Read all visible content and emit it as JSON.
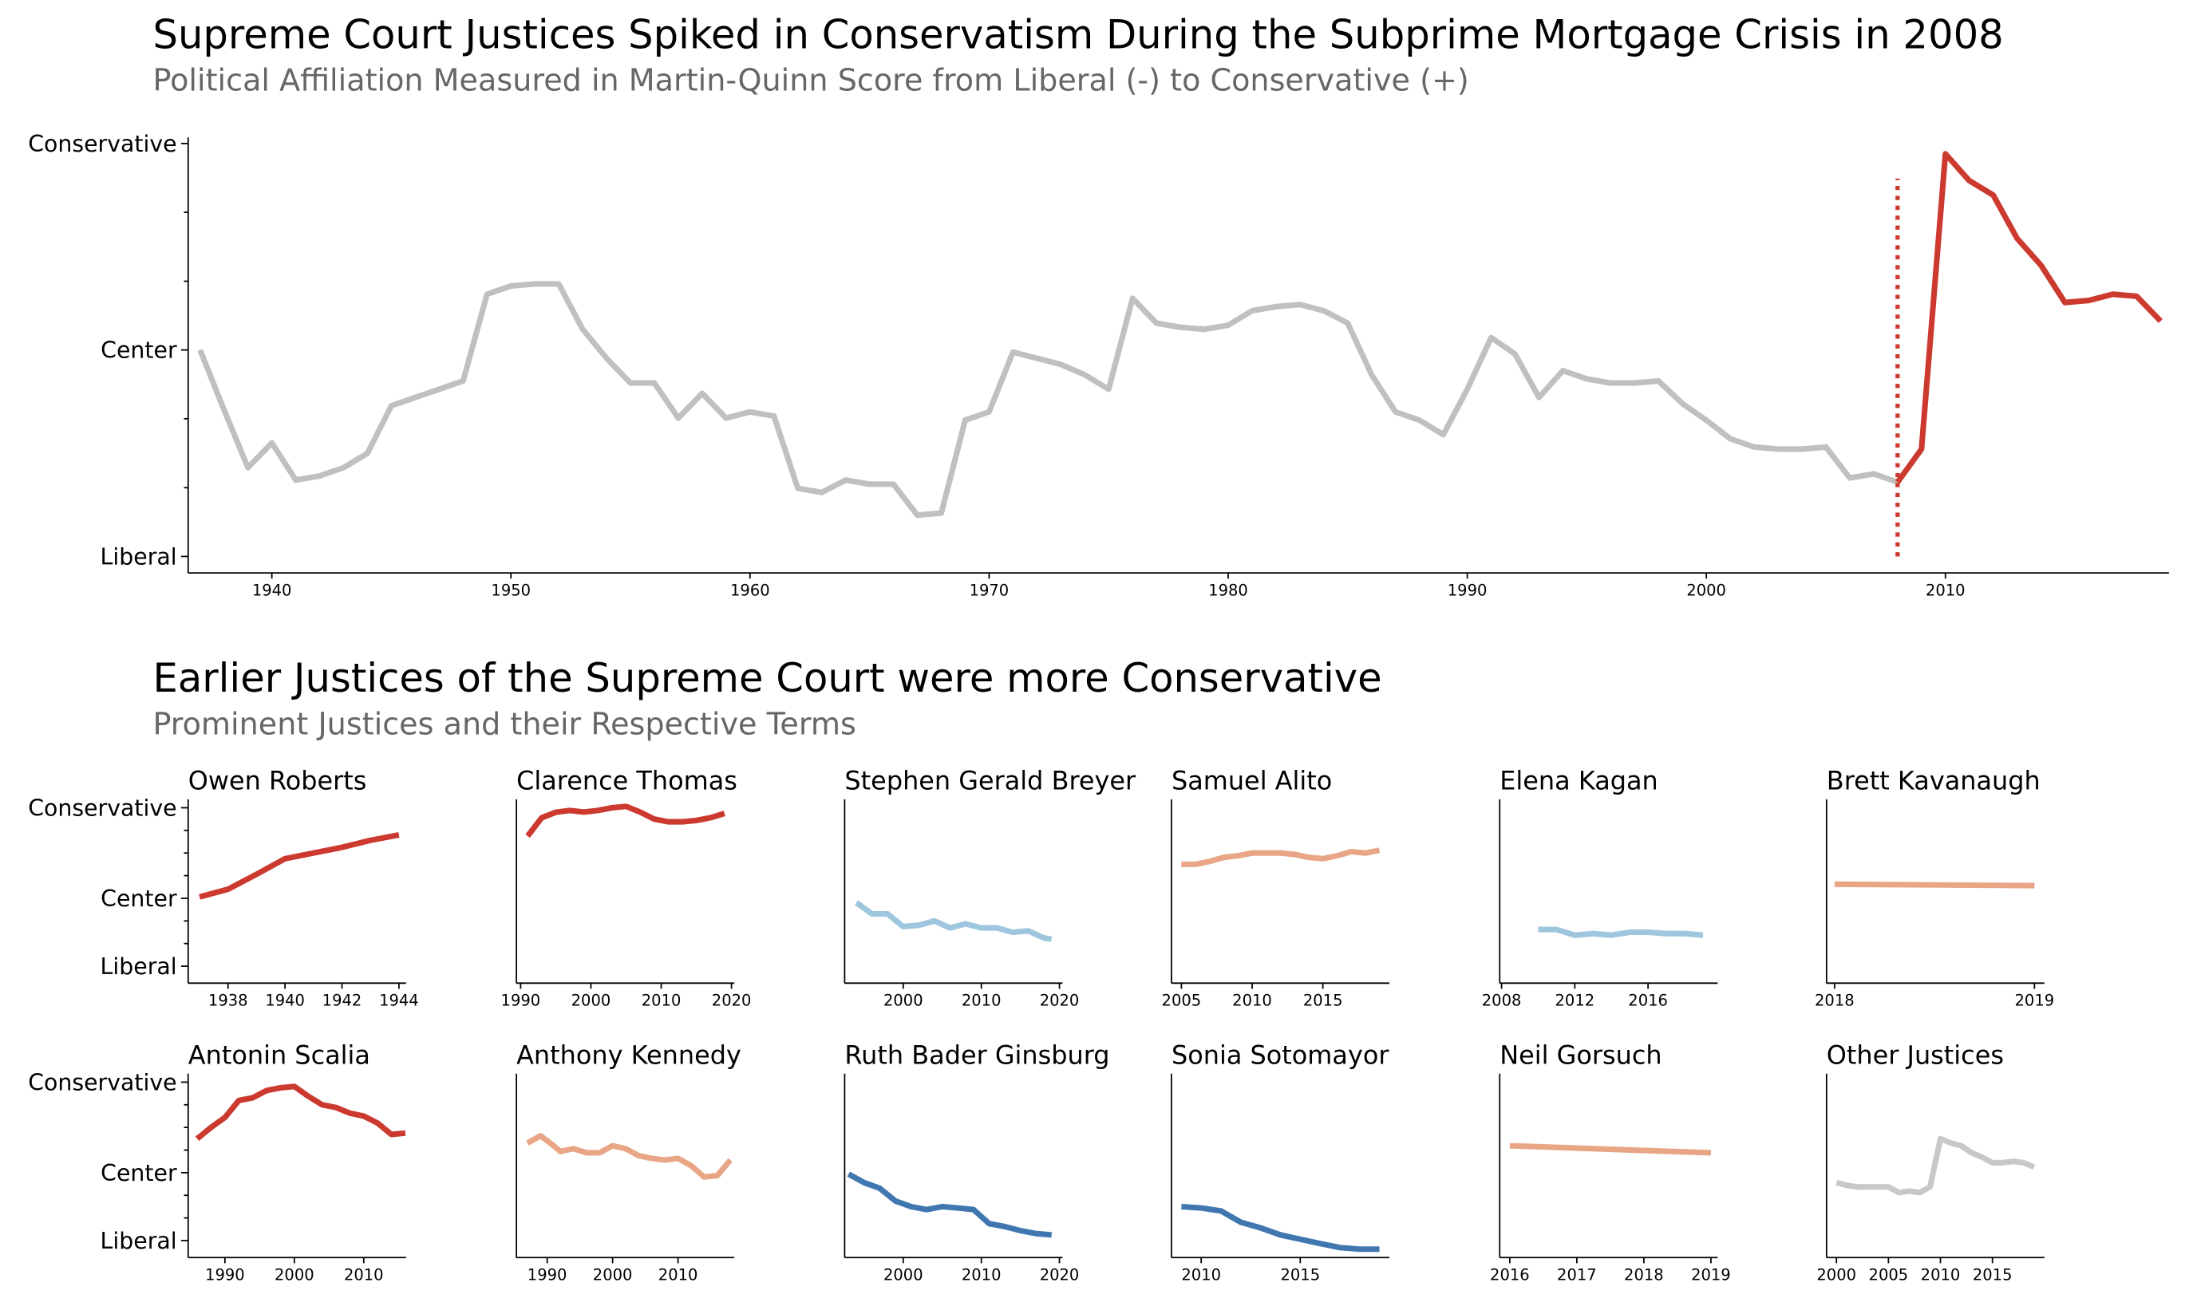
{
  "chart_data": [
    {
      "type": "line",
      "title": "Supreme Court Justices Spiked in Conservatism During the Subprime Mortgage Crisis in 2008",
      "subtitle": "Political Affiliation Measured in Martin-Quinn Score from Liberal (-) to Conservative (+)",
      "xlim": [
        1936.5,
        2019.35
      ],
      "xticks": [
        1940,
        1950,
        1960,
        1970,
        1980,
        1990,
        2000,
        2010
      ],
      "ylim": [
        -1.08,
        1.03
      ],
      "yticks": [
        {
          "value": -1,
          "label": "Liberal"
        },
        {
          "value": 0,
          "label": "Center"
        },
        {
          "value": 1,
          "label": "Conservative"
        }
      ],
      "yminorticks": [
        -0.667,
        -0.333,
        0.333,
        0.667
      ],
      "series": [
        {
          "color": "#c0c0c0",
          "x": [
            1937,
            1938,
            1939,
            1940,
            1941,
            1942,
            1943,
            1944,
            1945,
            1946,
            1947,
            1948,
            1949,
            1950,
            1951,
            1952,
            1953,
            1954,
            1955,
            1956,
            1957,
            1958,
            1959,
            1960,
            1961,
            1962,
            1963,
            1964,
            1965,
            1966,
            1967,
            1968,
            1969,
            1970,
            1971,
            1972,
            1973,
            1974,
            1975,
            1976,
            1977,
            1978,
            1979,
            1980,
            1981,
            1982,
            1983,
            1984,
            1985,
            1986,
            1987,
            1988,
            1989,
            1990,
            1991,
            1992,
            1993,
            1994,
            1995,
            1996,
            1997,
            1998,
            1999,
            2000,
            2001,
            2002,
            2003,
            2004,
            2005,
            2006,
            2007,
            2008
          ],
          "values": [
            0,
            -0.29,
            -0.57,
            -0.45,
            -0.63,
            -0.61,
            -0.57,
            -0.5,
            -0.27,
            -0.23,
            -0.19,
            -0.15,
            0.27,
            0.31,
            0.32,
            0.32,
            0.1,
            -0.04,
            -0.16,
            -0.16,
            -0.33,
            -0.21,
            -0.33,
            -0.3,
            -0.32,
            -0.67,
            -0.69,
            -0.63,
            -0.65,
            -0.65,
            -0.8,
            -0.79,
            -0.34,
            -0.3,
            -0.01,
            -0.04,
            -0.07,
            -0.12,
            -0.19,
            0.25,
            0.13,
            0.11,
            0.1,
            0.12,
            0.19,
            0.21,
            0.22,
            0.19,
            0.13,
            -0.12,
            -0.3,
            -0.34,
            -0.41,
            -0.19,
            0.06,
            -0.02,
            -0.23,
            -0.1,
            -0.14,
            -0.16,
            -0.16,
            -0.15,
            -0.26,
            -0.34,
            -0.43,
            -0.47,
            -0.48,
            -0.48,
            -0.47,
            -0.62,
            -0.6,
            -0.64
          ]
        },
        {
          "color": "#cc3a2f",
          "x": [
            2008,
            2009,
            2010,
            2011,
            2012,
            2013,
            2014,
            2015,
            2016,
            2017,
            2018,
            2019
          ],
          "values": [
            -0.64,
            -0.48,
            0.95,
            0.82,
            0.75,
            0.54,
            0.41,
            0.23,
            0.24,
            0.27,
            0.26,
            0.14
          ]
        }
      ],
      "vline": {
        "x": 2008,
        "ymin": -1,
        "ymax": 0.83,
        "color": "#cc3a2f",
        "style": "dotted"
      }
    },
    {
      "type": "small-multiples",
      "title": "Earlier Justices of the Supreme Court were more Conservative",
      "subtitle": "Prominent Justices and their Respective Terms",
      "ylim": [
        -3.75,
        4.375
      ],
      "yticks": [
        {
          "value": -3,
          "label": "Liberal"
        },
        {
          "value": 0,
          "label": "Center"
        },
        {
          "value": 4,
          "label": "Conservative"
        }
      ],
      "yminorticks": [
        -2,
        -1,
        1,
        2,
        3
      ],
      "panels": [
        {
          "title": "Owen Roberts",
          "color": "#cc3a2f",
          "xlim": [
            1936.6,
            1944.25
          ],
          "xticks": [
            1938,
            1940,
            1942,
            1944
          ],
          "x": [
            1937,
            1938,
            1939,
            1940,
            1941,
            1942,
            1943,
            1944
          ],
          "values": [
            0.06,
            0.4,
            1.06,
            1.75,
            2.0,
            2.25,
            2.56,
            2.8
          ]
        },
        {
          "title": "Clarence Thomas",
          "color": "#cc3a2f",
          "xlim": [
            1989.4,
            2020.4
          ],
          "xticks": [
            1990,
            2000,
            2010,
            2020
          ],
          "x": [
            1991,
            1993,
            1995,
            1997,
            1999,
            2001,
            2003,
            2005,
            2007,
            2009,
            2011,
            2013,
            2015,
            2017,
            2019
          ],
          "values": [
            2.75,
            3.56,
            3.8,
            3.88,
            3.81,
            3.88,
            4.0,
            4.06,
            3.81,
            3.5,
            3.38,
            3.38,
            3.44,
            3.56,
            3.75
          ]
        },
        {
          "title": "Stephen Gerald Breyer",
          "color": "#9ec6de",
          "xlim": [
            1992.5,
            2020.4
          ],
          "xticks": [
            2000,
            2010,
            2020
          ],
          "x": [
            1994,
            1996,
            1998,
            2000,
            2002,
            2004,
            2006,
            2008,
            2010,
            2012,
            2014,
            2016,
            2018,
            2019
          ],
          "values": [
            -0.19,
            -0.69,
            -0.69,
            -1.25,
            -1.19,
            -1.0,
            -1.31,
            -1.13,
            -1.31,
            -1.31,
            -1.5,
            -1.44,
            -1.75,
            -1.81
          ]
        },
        {
          "title": "Samuel Alito",
          "color": "#e9a686",
          "xlim": [
            2004.3,
            2019.7
          ],
          "xticks": [
            2005,
            2010,
            2015
          ],
          "x": [
            2005,
            2006,
            2007,
            2008,
            2009,
            2010,
            2011,
            2012,
            2013,
            2014,
            2015,
            2016,
            2017,
            2018,
            2019
          ],
          "values": [
            1.5,
            1.5,
            1.63,
            1.81,
            1.88,
            2.0,
            2.0,
            2.0,
            1.94,
            1.81,
            1.75,
            1.88,
            2.06,
            2.0,
            2.12
          ]
        },
        {
          "title": "Elena Kagan",
          "color": "#9ec6de",
          "xlim": [
            2007.9,
            2019.8
          ],
          "xticks": [
            2008,
            2012,
            2016
          ],
          "x": [
            2010,
            2011,
            2012,
            2013,
            2014,
            2015,
            2016,
            2017,
            2018,
            2019
          ],
          "values": [
            -1.38,
            -1.38,
            -1.63,
            -1.56,
            -1.63,
            -1.5,
            -1.5,
            -1.56,
            -1.56,
            -1.63
          ]
        },
        {
          "title": "Brett Kavanaugh",
          "color": "#e9a686",
          "xlim": [
            2017.96,
            2019.05
          ],
          "xticks": [
            2018,
            2019
          ],
          "x": [
            2018,
            2019
          ],
          "values": [
            0.62,
            0.56
          ]
        },
        {
          "title": "Antonin Scalia",
          "color": "#cc3a2f",
          "xlim": [
            1984.7,
            2016.1
          ],
          "xticks": [
            1990,
            2000,
            2010
          ],
          "x": [
            1986,
            1988,
            1990,
            1992,
            1994,
            1996,
            1998,
            2000,
            2002,
            2004,
            2006,
            2008,
            2010,
            2012,
            2014,
            2016
          ],
          "values": [
            1.5,
            2.0,
            2.44,
            3.19,
            3.31,
            3.63,
            3.75,
            3.81,
            3.38,
            3.0,
            2.88,
            2.63,
            2.5,
            2.19,
            1.69,
            1.75
          ]
        },
        {
          "title": "Anthony Kennedy",
          "color": "#e9a686",
          "xlim": [
            1985.3,
            2018.6
          ],
          "xticks": [
            1990,
            2000,
            2010
          ],
          "x": [
            1987,
            1989,
            1991,
            1992,
            1994,
            1996,
            1998,
            2000,
            2002,
            2004,
            2006,
            2008,
            2010,
            2012,
            2014,
            2016,
            2018
          ],
          "values": [
            1.31,
            1.63,
            1.19,
            0.94,
            1.06,
            0.88,
            0.88,
            1.19,
            1.06,
            0.75,
            0.63,
            0.56,
            0.63,
            0.31,
            -0.19,
            -0.13,
            0.56
          ]
        },
        {
          "title": "Ruth Bader Ginsburg",
          "color": "#4077b0",
          "xlim": [
            1992.5,
            2020.4
          ],
          "xticks": [
            2000,
            2010,
            2020
          ],
          "x": [
            1993,
            1995,
            1997,
            1999,
            2001,
            2003,
            2005,
            2007,
            2009,
            2011,
            2013,
            2015,
            2017,
            2019
          ],
          "values": [
            -0.06,
            -0.44,
            -0.69,
            -1.25,
            -1.5,
            -1.63,
            -1.5,
            -1.56,
            -1.63,
            -2.25,
            -2.38,
            -2.56,
            -2.69,
            -2.75
          ]
        },
        {
          "title": "Sonia Sotomayor",
          "color": "#4077b0",
          "xlim": [
            2008.5,
            2019.5
          ],
          "xticks": [
            2010,
            2015
          ],
          "x": [
            2009,
            2010,
            2011,
            2012,
            2013,
            2014,
            2015,
            2016,
            2017,
            2018,
            2019
          ],
          "values": [
            -1.5,
            -1.56,
            -1.69,
            -2.19,
            -2.44,
            -2.75,
            -2.94,
            -3.13,
            -3.31,
            -3.38,
            -3.38
          ]
        },
        {
          "title": "Neil Gorsuch",
          "color": "#e9a686",
          "xlim": [
            2015.85,
            2019.1
          ],
          "xticks": [
            2016,
            2017,
            2018,
            2019
          ],
          "x": [
            2016,
            2019
          ],
          "values": [
            1.19,
            0.88
          ]
        },
        {
          "title": "Other Justices",
          "color": "#c8c8c8",
          "xlim": [
            1999.05,
            2020.0
          ],
          "xticks": [
            2000,
            2005,
            2010,
            2015
          ],
          "x": [
            2000,
            2001,
            2002,
            2003,
            2004,
            2005,
            2006,
            2007,
            2008,
            2009,
            2010,
            2011,
            2012,
            2013,
            2014,
            2015,
            2016,
            2017,
            2018,
            2019
          ],
          "values": [
            -0.44,
            -0.56,
            -0.63,
            -0.63,
            -0.63,
            -0.63,
            -0.88,
            -0.81,
            -0.88,
            -0.63,
            1.5,
            1.31,
            1.19,
            0.88,
            0.69,
            0.44,
            0.44,
            0.5,
            0.44,
            0.25
          ]
        }
      ]
    }
  ]
}
